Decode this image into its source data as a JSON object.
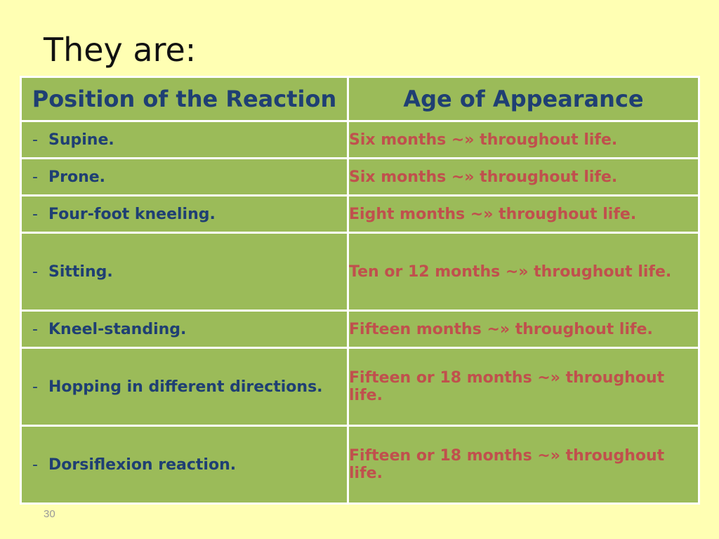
{
  "slide": {
    "title": "They are:",
    "page_number": "30"
  },
  "table": {
    "headers": [
      "Position of the Reaction",
      "Age of Appearance"
    ],
    "rows": [
      {
        "bullet": "-",
        "position": "Supine.",
        "age": "Six months ~» throughout life."
      },
      {
        "bullet": "-",
        "position": "Prone.",
        "age": "Six months ~» throughout life."
      },
      {
        "bullet": "-",
        "position": "Four-foot kneeling.",
        "age": "Eight months ~» throughout life."
      },
      {
        "bullet": "-",
        "position": "Sitting.",
        "age": "Ten or 12 months ~» throughout life."
      },
      {
        "bullet": "-",
        "position": "Kneel-standing.",
        "age": "Fifteen months ~» throughout life."
      },
      {
        "bullet": "-",
        "position": "Hopping in different directions.",
        "age": "Fifteen or 18 months ~» throughout life."
      },
      {
        "bullet": "-",
        "position": "Dorsiflexion reaction.",
        "age": "Fifteen or 18 months ~» throughout life."
      }
    ]
  },
  "colors": {
    "background": "#ffffb3",
    "cell": "#9bbb59",
    "position_text": "#1f3f73",
    "age_text": "#c0504d"
  }
}
